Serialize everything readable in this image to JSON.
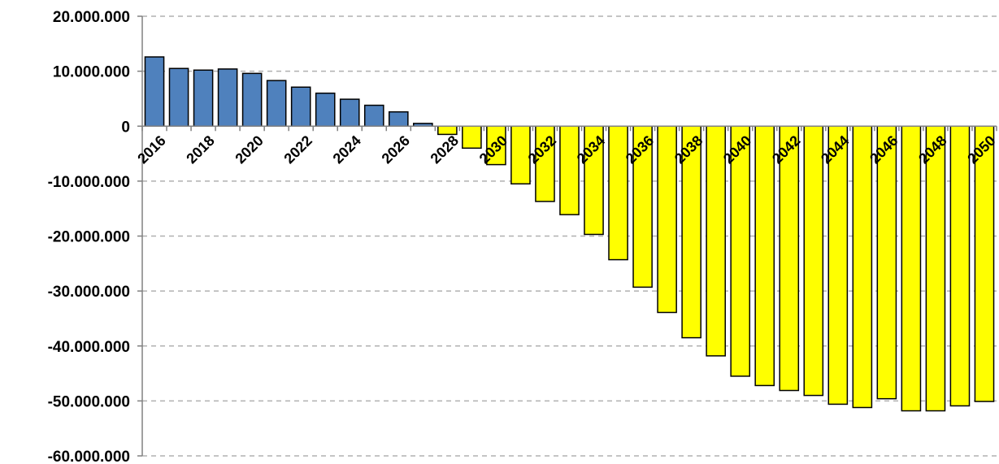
{
  "chart_data": {
    "type": "bar",
    "title": "",
    "xlabel": "",
    "ylabel": "",
    "ylim": [
      -60000000,
      20000000
    ],
    "y_ticks": [
      20000000,
      10000000,
      0,
      -10000000,
      -20000000,
      -30000000,
      -40000000,
      -50000000,
      -60000000
    ],
    "y_tick_labels": [
      "20.000.000",
      "10.000.000",
      "0",
      "-10.000.000",
      "-20.000.000",
      "-30.000.000",
      "-40.000.000",
      "-50.000.000",
      "-60.000.000"
    ],
    "grid": true,
    "legend": "none",
    "categories": [
      2016,
      2017,
      2018,
      2019,
      2020,
      2021,
      2022,
      2023,
      2024,
      2025,
      2026,
      2027,
      2028,
      2029,
      2030,
      2031,
      2032,
      2033,
      2034,
      2035,
      2036,
      2037,
      2038,
      2039,
      2040,
      2041,
      2042,
      2043,
      2044,
      2045,
      2046,
      2047,
      2048,
      2049,
      2050
    ],
    "x_tick_labels": [
      "2016",
      "2018",
      "2020",
      "2022",
      "2024",
      "2026",
      "2028",
      "2030",
      "2032",
      "2034",
      "2036",
      "2038",
      "2040",
      "2042",
      "2044",
      "2046",
      "2048",
      "2050"
    ],
    "values": [
      12600000,
      10500000,
      10200000,
      10400000,
      9600000,
      8300000,
      7100000,
      6000000,
      4900000,
      3800000,
      2600000,
      500000,
      -1500000,
      -4000000,
      -7000000,
      -10500000,
      -13700000,
      -16100000,
      -19700000,
      -24300000,
      -29300000,
      -33900000,
      -38500000,
      -41800000,
      -45500000,
      -47200000,
      -48100000,
      -49000000,
      -50600000,
      -51200000,
      -49600000,
      -51800000,
      -51800000,
      -50900000,
      -50100000
    ],
    "colors": {
      "positive": "#4f81bd",
      "negative": "#ffff00",
      "stroke": "#000000",
      "grid": "#b0b0b0",
      "axis": "#808080"
    }
  }
}
